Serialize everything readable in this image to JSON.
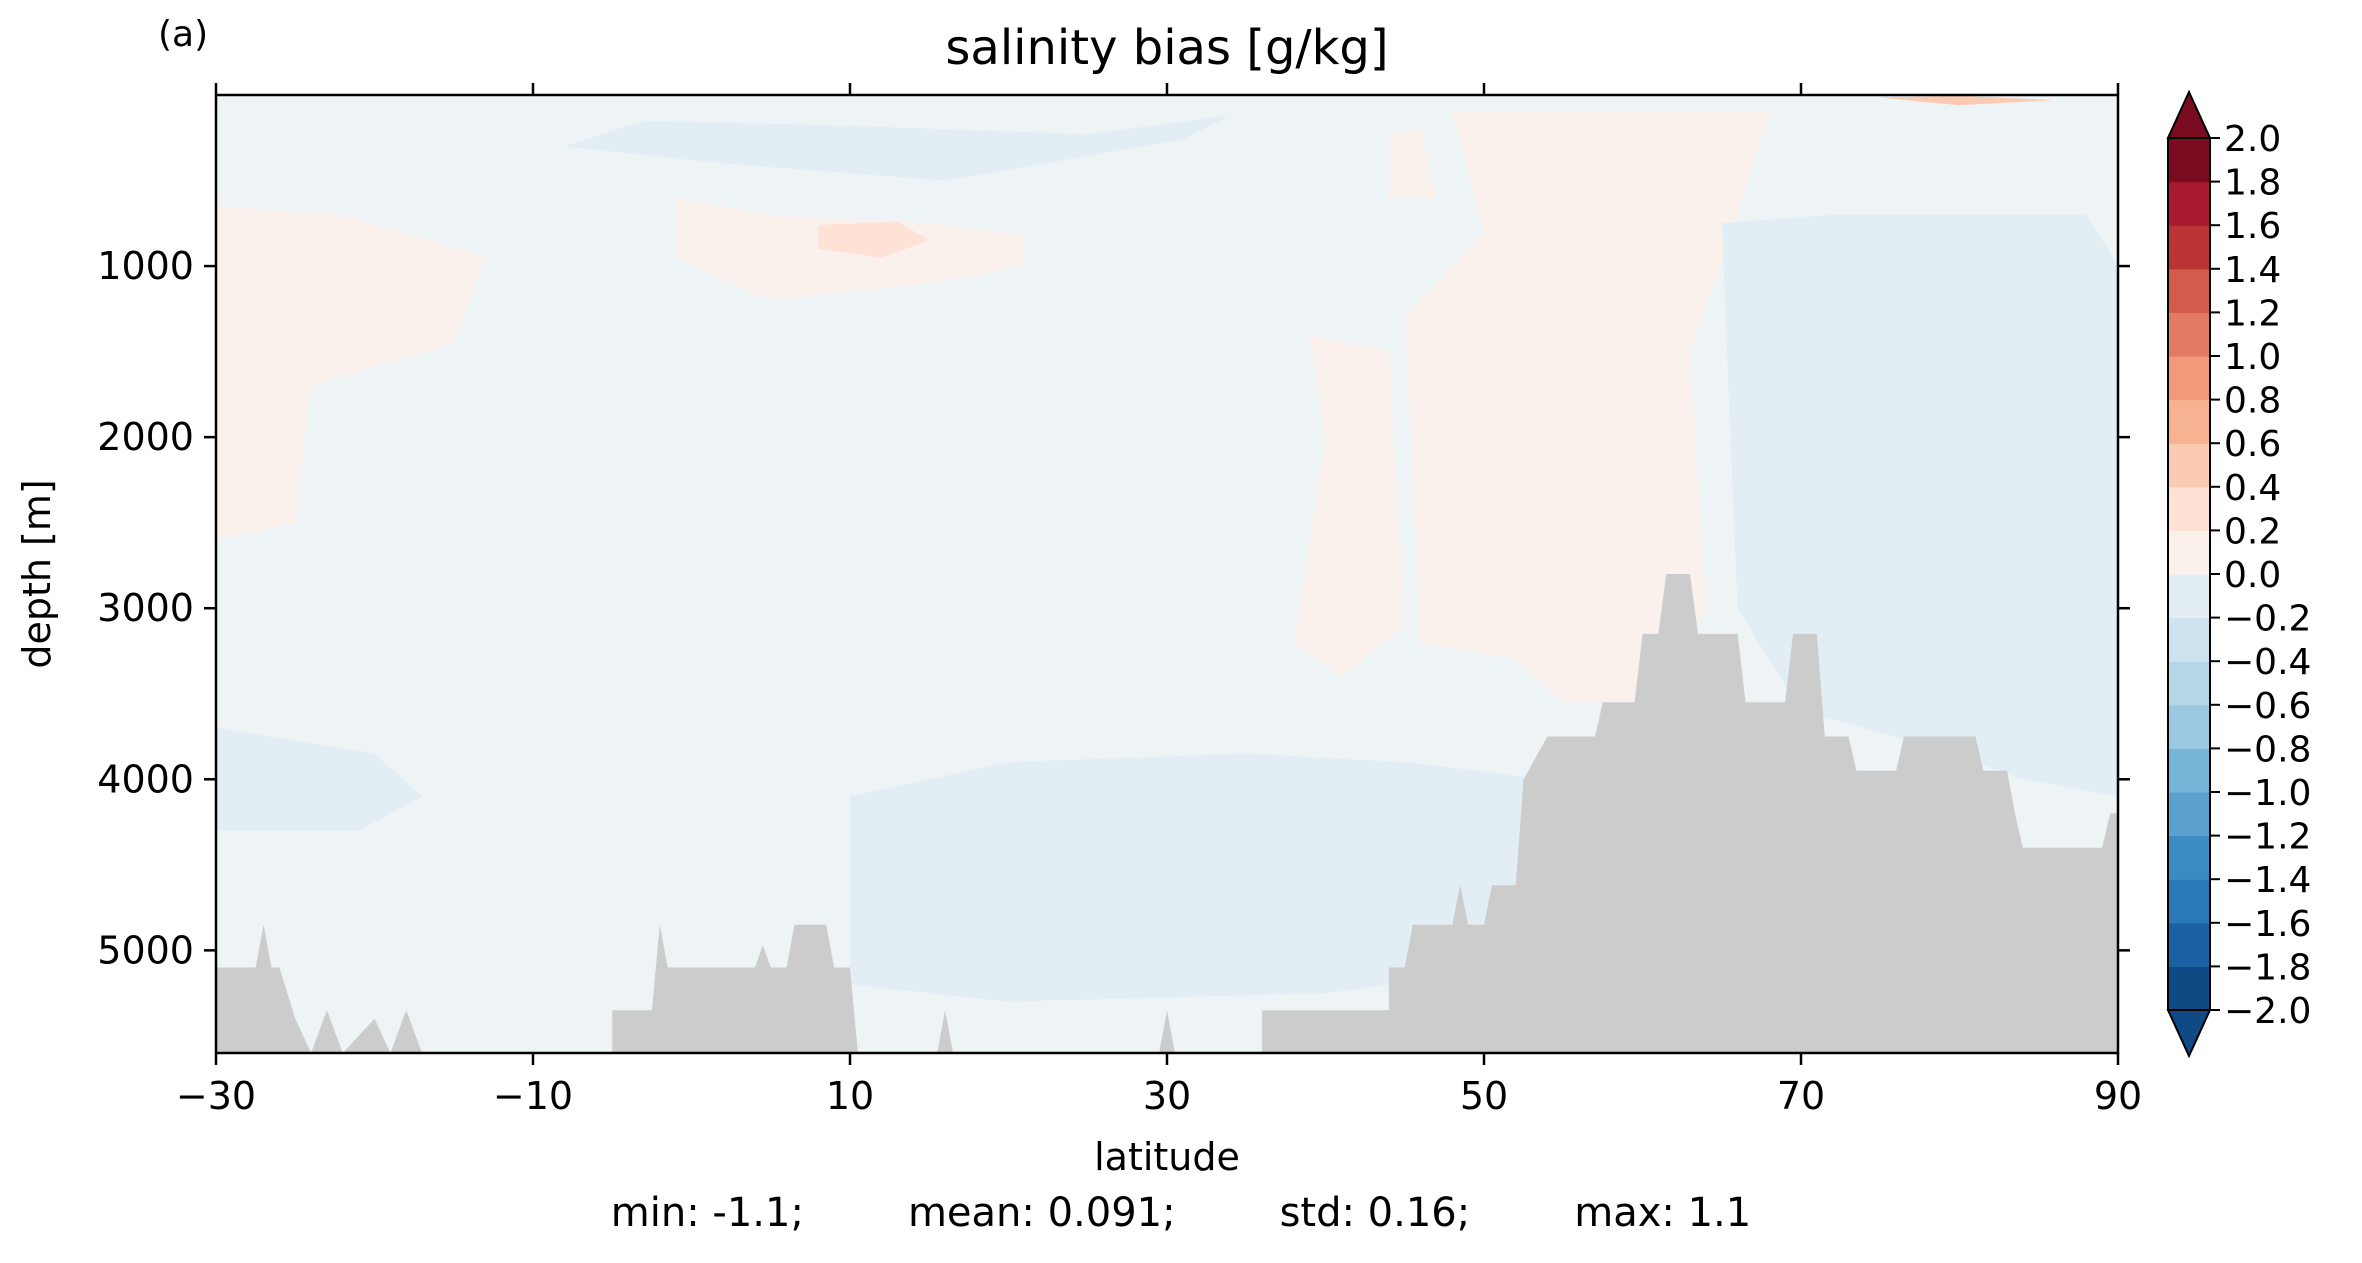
{
  "chart_data": {
    "type": "heatmap",
    "panel_label": "(a)",
    "title": "salinity bias [g/kg]",
    "xlabel": "latitude",
    "ylabel": "depth [m]",
    "xlim": [
      -30,
      90
    ],
    "ylim": [
      5600,
      0
    ],
    "x_ticks": [
      -30,
      -10,
      10,
      30,
      50,
      70,
      90
    ],
    "x_tick_labels": [
      "−30",
      "−10",
      "10",
      "30",
      "50",
      "70",
      "90"
    ],
    "y_ticks": [
      1000,
      2000,
      3000,
      4000,
      5000
    ],
    "y_tick_labels": [
      "1000",
      "2000",
      "3000",
      "4000",
      "5000"
    ],
    "colorbar": {
      "levels": [
        -2.0,
        -1.8,
        -1.6,
        -1.4,
        -1.2,
        -1.0,
        -0.8,
        -0.6,
        -0.4,
        -0.2,
        0.0,
        0.2,
        0.4,
        0.6,
        0.8,
        1.0,
        1.2,
        1.4,
        1.6,
        1.8,
        2.0
      ],
      "labels": [
        "−2.0",
        "−1.8",
        "−1.6",
        "−1.4",
        "−1.2",
        "−1.0",
        "−0.8",
        "−0.6",
        "−0.4",
        "−0.2",
        "0.0",
        "0.2",
        "0.4",
        "0.6",
        "0.8",
        "1.0",
        "1.2",
        "1.4",
        "1.6",
        "1.8",
        "2.0"
      ],
      "colors": [
        "#104a85",
        "#1b62a5",
        "#2b78b6",
        "#3b8bc2",
        "#5aa2cd",
        "#76b4d8",
        "#9ac8e0",
        "#b6d6e8",
        "#cfe2ef",
        "#e2edf4",
        "#eef3f6",
        "#faf0ec",
        "#fde2d5",
        "#fbcab2",
        "#f7b292",
        "#f19979",
        "#e27b63",
        "#d25b4e",
        "#bb3434",
        "#a7192c",
        "#7a0c22"
      ],
      "extend": "both"
    },
    "field_regions": [
      {
        "bias": 0.1,
        "polygon": [
          [
            -30,
            0
          ],
          [
            90,
            0
          ],
          [
            90,
            5600
          ],
          [
            -30,
            5600
          ]
        ]
      },
      {
        "bias": -0.1,
        "polygon": [
          [
            -30,
            3700
          ],
          [
            -20,
            3850
          ],
          [
            -17,
            4100
          ],
          [
            -21,
            4300
          ],
          [
            -30,
            4300
          ]
        ]
      },
      {
        "bias": -0.1,
        "polygon": [
          [
            -3,
            150
          ],
          [
            10,
            180
          ],
          [
            25,
            230
          ],
          [
            34,
            120
          ],
          [
            31,
            260
          ],
          [
            16,
            500
          ],
          [
            2,
            400
          ],
          [
            -8,
            300
          ]
        ]
      },
      {
        "bias": 0.25,
        "polygon": [
          [
            -30,
            650
          ],
          [
            -22,
            700
          ],
          [
            -13,
            950
          ],
          [
            -15,
            1450
          ],
          [
            -24,
            1700
          ],
          [
            -25,
            2500
          ],
          [
            -30,
            2600
          ]
        ]
      },
      {
        "bias": 0.25,
        "polygon": [
          [
            -1,
            600
          ],
          [
            5,
            700
          ],
          [
            15,
            750
          ],
          [
            21,
            820
          ],
          [
            21,
            1000
          ],
          [
            15,
            1100
          ],
          [
            5,
            1200
          ],
          [
            -1,
            950
          ]
        ]
      },
      {
        "bias": 0.5,
        "polygon": [
          [
            8,
            760
          ],
          [
            13,
            740
          ],
          [
            15,
            850
          ],
          [
            12,
            950
          ],
          [
            8,
            900
          ]
        ]
      },
      {
        "bias": 0.25,
        "polygon": [
          [
            39,
            1400
          ],
          [
            44,
            1500
          ],
          [
            45,
            3100
          ],
          [
            41,
            3400
          ],
          [
            38,
            3200
          ],
          [
            40,
            2000
          ]
        ]
      },
      {
        "bias": 0.25,
        "polygon": [
          [
            48,
            100
          ],
          [
            68,
            100
          ],
          [
            66,
            700
          ],
          [
            63,
            1500
          ],
          [
            64,
            3000
          ],
          [
            61,
            3550
          ],
          [
            55,
            3550
          ],
          [
            52,
            3300
          ],
          [
            46,
            3200
          ],
          [
            45,
            1300
          ],
          [
            50,
            800
          ]
        ]
      },
      {
        "bias": 0.25,
        "polygon": [
          [
            44,
            220
          ],
          [
            46,
            200
          ],
          [
            47,
            600
          ],
          [
            44,
            600
          ]
        ]
      },
      {
        "bias": -0.05,
        "polygon": [
          [
            10,
            4100
          ],
          [
            20,
            3900
          ],
          [
            35,
            3850
          ],
          [
            45,
            3900
          ],
          [
            54,
            4000
          ],
          [
            60,
            4050
          ],
          [
            60,
            5000
          ],
          [
            40,
            5250
          ],
          [
            20,
            5300
          ],
          [
            10,
            5200
          ]
        ]
      },
      {
        "bias": -0.05,
        "polygon": [
          [
            65,
            750
          ],
          [
            72,
            700
          ],
          [
            88,
            700
          ],
          [
            90,
            1000
          ],
          [
            90,
            4100
          ],
          [
            84,
            4000
          ],
          [
            78,
            3800
          ],
          [
            70,
            3600
          ],
          [
            66,
            3000
          ]
        ]
      },
      {
        "bias": 0.7,
        "polygon": [
          [
            75,
            15
          ],
          [
            80,
            5
          ],
          [
            86,
            30
          ],
          [
            80,
            60
          ]
        ]
      }
    ],
    "bathymetry": [
      [
        -30,
        5600
      ],
      [
        -30,
        5100
      ],
      [
        -27.5,
        5100
      ],
      [
        -27,
        4850
      ],
      [
        -26.5,
        5100
      ],
      [
        -26,
        5100
      ],
      [
        -25,
        5400
      ],
      [
        -24,
        5600
      ],
      [
        -23,
        5350
      ],
      [
        -22,
        5600
      ],
      [
        -20,
        5400
      ],
      [
        -19,
        5600
      ],
      [
        -18,
        5350
      ],
      [
        -17,
        5600
      ],
      [
        -5,
        5600
      ],
      [
        -5,
        5350
      ],
      [
        -2.5,
        5350
      ],
      [
        -2,
        4850
      ],
      [
        -1.5,
        5100
      ],
      [
        4,
        5100
      ],
      [
        4.5,
        4970
      ],
      [
        5,
        5100
      ],
      [
        6,
        5100
      ],
      [
        6.5,
        4850
      ],
      [
        8.5,
        4850
      ],
      [
        9,
        5100
      ],
      [
        10,
        5100
      ],
      [
        10.5,
        5600
      ],
      [
        15.5,
        5600
      ],
      [
        16,
        5350
      ],
      [
        16.5,
        5600
      ],
      [
        29.5,
        5600
      ],
      [
        30,
        5350
      ],
      [
        30.5,
        5600
      ],
      [
        36,
        5600
      ],
      [
        36,
        5350
      ],
      [
        44,
        5350
      ],
      [
        44,
        5100
      ],
      [
        45,
        5100
      ],
      [
        45.5,
        4850
      ],
      [
        48,
        4850
      ],
      [
        48.5,
        4620
      ],
      [
        49,
        4850
      ],
      [
        50,
        4850
      ],
      [
        50.5,
        4620
      ],
      [
        52,
        4620
      ],
      [
        52.5,
        4000
      ],
      [
        54,
        3750
      ],
      [
        57,
        3750
      ],
      [
        57.5,
        3550
      ],
      [
        59.5,
        3550
      ],
      [
        60,
        3150
      ],
      [
        61,
        3150
      ],
      [
        61.5,
        2800
      ],
      [
        63,
        2800
      ],
      [
        63.5,
        3150
      ],
      [
        66,
        3150
      ],
      [
        66.5,
        3550
      ],
      [
        69,
        3550
      ],
      [
        69.5,
        3150
      ],
      [
        71,
        3150
      ],
      [
        71.5,
        3750
      ],
      [
        73,
        3750
      ],
      [
        73.5,
        3950
      ],
      [
        76,
        3950
      ],
      [
        76.5,
        3750
      ],
      [
        81,
        3750
      ],
      [
        81.5,
        3950
      ],
      [
        83,
        3950
      ],
      [
        83.5,
        4200
      ],
      [
        84,
        4400
      ],
      [
        89,
        4400
      ],
      [
        89.5,
        4200
      ],
      [
        90,
        4200
      ],
      [
        90,
        5600
      ]
    ],
    "bathymetry_color": "#cccccc"
  },
  "stats": {
    "min": "min: -1.1;",
    "mean": "mean: 0.091;",
    "std": "std: 0.16;",
    "max": "max: 1.1"
  }
}
